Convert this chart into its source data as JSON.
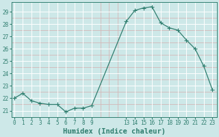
{
  "x": [
    0,
    1,
    2,
    3,
    4,
    5,
    6,
    7,
    8,
    9,
    13,
    14,
    15,
    16,
    17,
    18,
    19,
    20,
    21,
    22,
    23
  ],
  "y": [
    22.0,
    22.4,
    21.8,
    21.6,
    21.5,
    21.5,
    20.9,
    21.2,
    21.2,
    21.4,
    28.2,
    29.1,
    29.3,
    29.4,
    28.1,
    27.7,
    27.5,
    26.7,
    26.0,
    24.6,
    22.7
  ],
  "line_color": "#2e7d6e",
  "marker_size": 2.5,
  "bg_color": "#cde8e8",
  "grid_white_color": "#ffffff",
  "grid_pink_color": "#d4b8b8",
  "xlabel": "Humidex (Indice chaleur)",
  "xlabel_color": "#2e7d6e",
  "xlabel_fontsize": 7.5,
  "tick_color": "#2e7d6e",
  "ylim": [
    20.5,
    29.75
  ],
  "yticks": [
    21,
    22,
    23,
    24,
    25,
    26,
    27,
    28,
    29
  ],
  "xticks": [
    0,
    1,
    2,
    3,
    4,
    5,
    6,
    7,
    8,
    9,
    13,
    14,
    15,
    16,
    17,
    18,
    19,
    20,
    21,
    22,
    23
  ],
  "xlim": [
    -0.3,
    23.5
  ]
}
